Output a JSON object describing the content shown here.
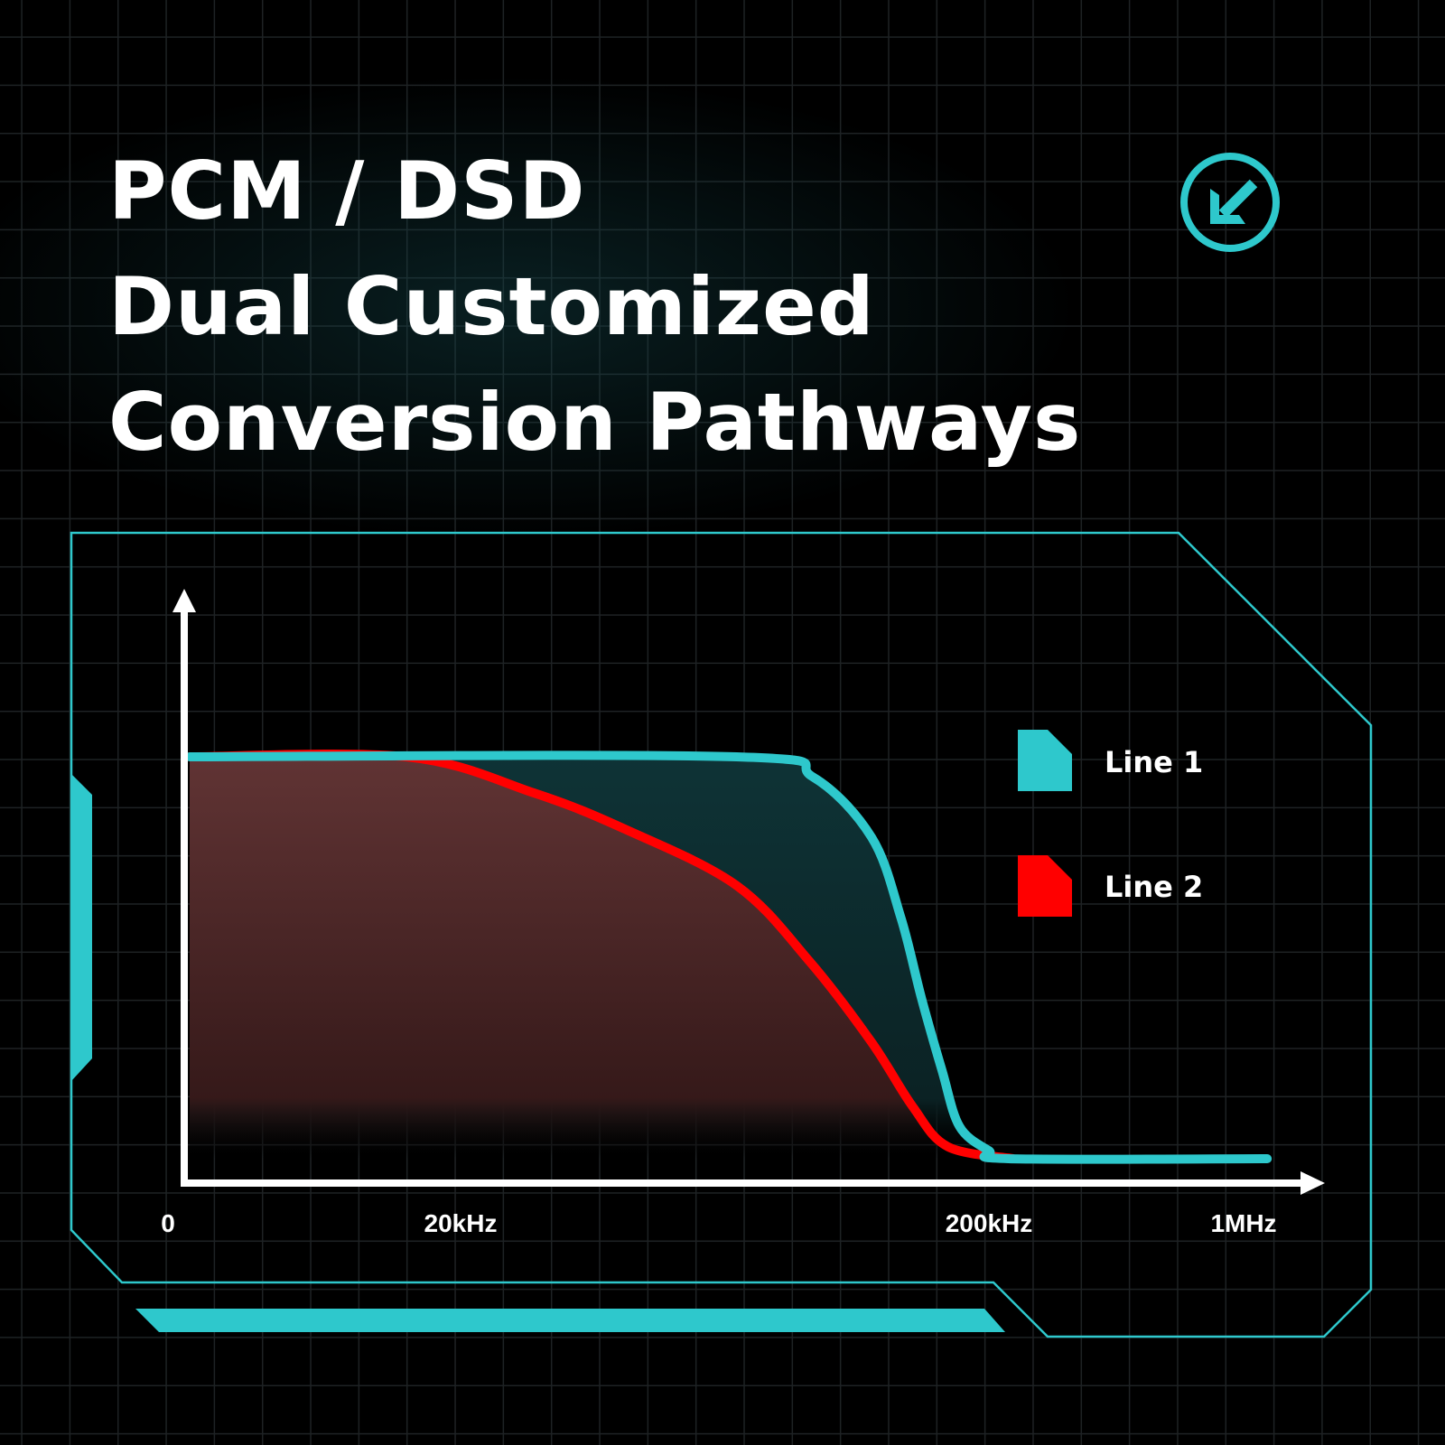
{
  "title_lines": [
    "PCM / DSD",
    "Dual Customized",
    "Conversion Pathways"
  ],
  "icon": "arrow-down-left-circle-icon",
  "colors": {
    "accent": "#2ec8cc",
    "line1": "#2ec8cc",
    "line2": "#ff0000",
    "background": "#000000"
  },
  "chart_data": {
    "type": "area",
    "x_tick_labels": [
      "0",
      "20kHz",
      "200kHz",
      "1MHz"
    ],
    "x_ticks_khz": [
      0,
      20,
      200,
      1000
    ],
    "y_range": [
      0,
      1
    ],
    "grid": true,
    "legend_placement": "right",
    "series": [
      {
        "name": "Line 1",
        "color": "#2ec8cc",
        "points": [
          [
            0,
            1
          ],
          [
            114,
            1
          ],
          [
            140,
            0.95
          ],
          [
            160,
            0.8
          ],
          [
            170,
            0.6
          ],
          [
            177,
            0.4
          ],
          [
            184,
            0.22
          ],
          [
            190,
            0.08
          ],
          [
            200,
            0.02
          ],
          [
            263,
            0
          ],
          [
            1090,
            0
          ]
        ]
      },
      {
        "name": "Line 2",
        "color": "#ff0000",
        "points": [
          [
            0,
            1
          ],
          [
            16,
            1
          ],
          [
            45,
            0.91
          ],
          [
            76,
            0.82
          ],
          [
            114,
            0.68
          ],
          [
            139,
            0.49
          ],
          [
            160,
            0.29
          ],
          [
            174,
            0.13
          ],
          [
            186,
            0.03
          ],
          [
            278,
            0
          ]
        ]
      }
    ]
  }
}
